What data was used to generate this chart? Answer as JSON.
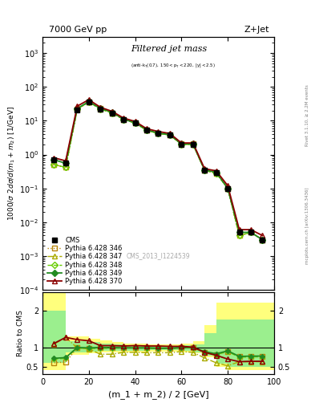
{
  "title_left": "7000 GeV pp",
  "title_right": "Z+Jet",
  "watermark": "CMS_2013_I1224539",
  "rivet_text": "Rivet 3.1.10, ≥ 2.2M events",
  "mcplots_text": "mcplots.cern.ch [arXiv:1306.3436]",
  "ylabel_main": "1000/σ 2dσ/d(m_1 + m_2) [1/GeV]",
  "ylabel_ratio": "Ratio to CMS",
  "xlabel": "(m_1 + m_2) / 2 [GeV]",
  "x_data": [
    5,
    10,
    15,
    20,
    25,
    30,
    35,
    40,
    45,
    50,
    55,
    60,
    65,
    70,
    75,
    80,
    85,
    90,
    95
  ],
  "x_bins": [
    0,
    10,
    15,
    20,
    25,
    30,
    35,
    40,
    45,
    50,
    55,
    60,
    65,
    70,
    75,
    80,
    85,
    90,
    100
  ],
  "cms_y": [
    0.7,
    0.55,
    21,
    35,
    22,
    17,
    11,
    8.5,
    5.2,
    4.2,
    3.8,
    2.0,
    2.0,
    0.35,
    0.3,
    0.1,
    0.005,
    0.005,
    0.003
  ],
  "p346_y": [
    0.5,
    0.42,
    22,
    36,
    23,
    17,
    11,
    8.8,
    5.4,
    4.2,
    3.8,
    2.05,
    2.05,
    0.34,
    0.28,
    0.1,
    0.004,
    0.005,
    0.003
  ],
  "p347_y": [
    0.5,
    0.42,
    22,
    36,
    22,
    17,
    11,
    8.5,
    5.2,
    4.2,
    3.8,
    2.0,
    2.0,
    0.34,
    0.28,
    0.1,
    0.004,
    0.005,
    0.003
  ],
  "p348_y": [
    0.5,
    0.42,
    22,
    36,
    22,
    17,
    11,
    8.5,
    5.2,
    4.2,
    3.8,
    2.0,
    2.0,
    0.34,
    0.28,
    0.1,
    0.004,
    0.005,
    0.003
  ],
  "p349_y": [
    0.7,
    0.55,
    23,
    37,
    23,
    18,
    11,
    8.8,
    5.4,
    4.3,
    3.9,
    2.05,
    2.05,
    0.35,
    0.3,
    0.1,
    0.005,
    0.005,
    0.003
  ],
  "p370_y": [
    0.8,
    0.65,
    27,
    42,
    25,
    19,
    12,
    9.5,
    5.8,
    4.8,
    4.2,
    2.2,
    2.2,
    0.38,
    0.33,
    0.12,
    0.006,
    0.006,
    0.004
  ],
  "ratio_346": [
    0.6,
    0.62,
    1.0,
    0.98,
    1.01,
    1.0,
    1.0,
    1.0,
    1.0,
    0.98,
    0.98,
    1.0,
    1.0,
    0.88,
    0.82,
    0.9,
    0.77,
    0.78,
    0.78
  ],
  "ratio_347": [
    1.1,
    1.28,
    1.0,
    0.97,
    0.83,
    0.83,
    0.88,
    0.88,
    0.87,
    0.87,
    0.87,
    0.9,
    0.88,
    0.73,
    0.6,
    0.52,
    0.63,
    0.63,
    0.63
  ],
  "ratio_348": [
    0.7,
    0.72,
    1.0,
    0.98,
    0.99,
    0.99,
    1.0,
    1.0,
    0.99,
    0.98,
    0.98,
    1.0,
    1.0,
    0.88,
    0.82,
    0.9,
    0.75,
    0.76,
    0.76
  ],
  "ratio_349": [
    0.72,
    0.74,
    1.01,
    1.0,
    1.01,
    1.01,
    1.0,
    1.0,
    1.0,
    0.99,
    0.99,
    1.01,
    1.01,
    0.9,
    0.84,
    0.92,
    0.77,
    0.78,
    0.78
  ],
  "ratio_370": [
    1.12,
    1.28,
    1.22,
    1.19,
    1.06,
    1.06,
    1.05,
    1.06,
    1.05,
    1.05,
    1.04,
    1.04,
    1.02,
    0.88,
    0.8,
    0.7,
    0.63,
    0.64,
    0.64
  ],
  "band_yellow_lo": [
    0.4,
    0.82,
    0.82,
    0.85,
    0.88,
    0.88,
    0.88,
    0.88,
    0.9,
    0.9,
    0.9,
    0.88,
    0.85,
    0.75,
    0.5,
    0.4,
    0.4,
    0.4,
    0.4
  ],
  "band_yellow_hi": [
    2.8,
    1.3,
    1.3,
    1.25,
    1.2,
    1.15,
    1.12,
    1.12,
    1.1,
    1.1,
    1.1,
    1.12,
    1.18,
    1.6,
    2.2,
    2.2,
    2.2,
    2.2,
    2.2
  ],
  "band_green_lo": [
    0.6,
    0.88,
    0.88,
    0.9,
    0.92,
    0.92,
    0.92,
    0.92,
    0.94,
    0.94,
    0.94,
    0.92,
    0.88,
    0.8,
    0.58,
    0.5,
    0.5,
    0.5,
    0.5
  ],
  "band_green_hi": [
    2.0,
    1.18,
    1.18,
    1.16,
    1.12,
    1.09,
    1.07,
    1.07,
    1.06,
    1.06,
    1.06,
    1.07,
    1.1,
    1.4,
    1.75,
    1.75,
    1.75,
    1.75,
    1.75
  ],
  "color_346": "#b8860b",
  "color_347": "#aaaa00",
  "color_348": "#90ee90",
  "color_349": "#228B22",
  "color_370": "#8B0000",
  "color_cms": "#000000",
  "xlim": [
    0,
    100
  ],
  "ylim_main": [
    0.0001,
    3000.0
  ],
  "ylim_ratio": [
    0.3,
    2.5
  ]
}
